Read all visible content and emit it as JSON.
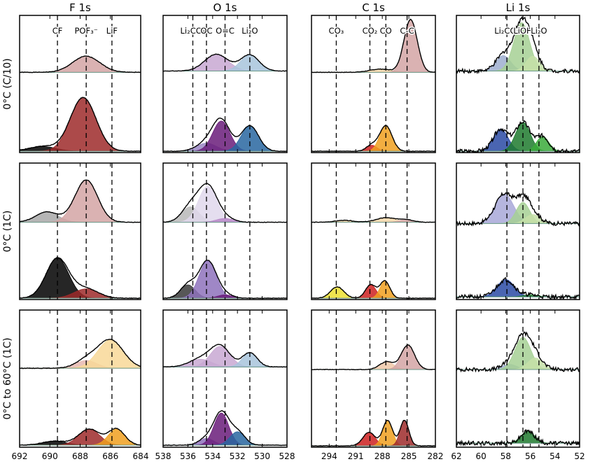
{
  "chart_data": {
    "type": "area",
    "columns": [
      {
        "title": "F 1s",
        "xlim": [
          692,
          684
        ],
        "ticks": [
          692,
          690,
          688,
          686,
          684
        ],
        "peak_positions": [
          689.5,
          687.6,
          685.9
        ],
        "peak_labels": [
          "CF",
          "POF₃⁻",
          "LiF"
        ]
      },
      {
        "title": "O 1s",
        "xlim": [
          538,
          528
        ],
        "ticks": [
          538,
          536,
          534,
          532,
          530,
          528
        ],
        "peak_positions": [
          535.6,
          534.5,
          533.0,
          531.0
        ],
        "peak_labels": [
          "Li₂CO₃",
          "OC",
          "O=C",
          "Li₂O"
        ]
      },
      {
        "title": "C 1s",
        "xlim": [
          296,
          282
        ],
        "ticks": [
          294,
          291,
          288,
          285,
          282
        ],
        "peak_positions": [
          293.2,
          289.4,
          287.6,
          285.2
        ],
        "peak_labels": [
          "CO₃",
          "CO₂",
          "CO",
          "C-C"
        ]
      },
      {
        "title": "Li 1s",
        "xlim": [
          62,
          52
        ],
        "ticks": [
          62,
          60,
          58,
          56,
          54,
          52
        ],
        "peak_positions": [
          57.9,
          56.6,
          55.3
        ],
        "peak_labels": [
          "Li₂CO₃",
          "LiOH",
          "Li₂O"
        ]
      }
    ],
    "rows": [
      "0°C (C/10)",
      "0°C (1C)",
      "0°C to 60°C (1C)"
    ],
    "panels": [
      [
        {
          "upper": {
            "baseline": 0.16,
            "components": [
              {
                "c": 687.6,
                "w": 0.9,
                "h": 0.25,
                "color": "#d4a5a5"
              }
            ]
          },
          "lower": {
            "baseline": 0.02,
            "components": [
              {
                "c": 690.5,
                "w": 0.9,
                "h": 0.07,
                "color": "#000000"
              },
              {
                "c": 687.8,
                "w": 0.85,
                "h": 0.8,
                "color": "#9e2a2a"
              }
            ]
          }
        },
        {
          "upper": {
            "baseline": 0.18,
            "components": [
              {
                "c": 533.7,
                "w": 0.95,
                "h": 0.26,
                "color": "#c8a8d2"
              },
              {
                "c": 531.0,
                "w": 0.75,
                "h": 0.25,
                "color": "#a8c4dc"
              }
            ]
          },
          "lower": {
            "baseline": 0.02,
            "components": [
              {
                "c": 534.5,
                "w": 0.8,
                "h": 0.12,
                "color": "#9a86c4"
              },
              {
                "c": 533.3,
                "w": 0.7,
                "h": 0.45,
                "color": "#6a1c7a"
              },
              {
                "c": 531.0,
                "w": 0.7,
                "h": 0.38,
                "color": "#2866a0"
              }
            ]
          }
        },
        {
          "upper": {
            "baseline": 0.16,
            "components": [
              {
                "c": 288.2,
                "w": 1.2,
                "h": 0.05,
                "color": "#f2d6a8"
              },
              {
                "c": 284.8,
                "w": 0.75,
                "h": 0.82,
                "color": "#d4a5a5"
              }
            ]
          },
          "lower": {
            "baseline": 0.02,
            "components": [
              {
                "c": 289.2,
                "w": 0.6,
                "h": 0.09,
                "color": "#cc2020"
              },
              {
                "c": 287.6,
                "w": 0.7,
                "h": 0.38,
                "color": "#f0a020"
              }
            ]
          }
        },
        {
          "upper": {
            "baseline": 0.18,
            "components": [
              {
                "c": 58.2,
                "w": 0.6,
                "h": 0.24,
                "color": "#9eaed0"
              },
              {
                "c": 56.7,
                "w": 0.65,
                "h": 0.75,
                "color": "#a6d094"
              },
              {
                "c": 55.8,
                "w": 0.55,
                "h": 0.23,
                "color": "#c6e0a8"
              }
            ]
          },
          "lower": {
            "baseline": 0.02,
            "components": [
              {
                "c": 58.4,
                "w": 0.6,
                "h": 0.33,
                "color": "#2a4aa4"
              },
              {
                "c": 56.6,
                "w": 0.6,
                "h": 0.43,
                "color": "#1e7a2e"
              },
              {
                "c": 55.0,
                "w": 0.5,
                "h": 0.22,
                "color": "#3aaa3a"
              }
            ]
          }
        }
      ],
      [
        {
          "upper": {
            "baseline": 0.12,
            "components": [
              {
                "c": 690.2,
                "w": 0.75,
                "h": 0.16,
                "color": "#a8a8a8"
              },
              {
                "c": 687.6,
                "w": 0.75,
                "h": 0.66,
                "color": "#d4a5a5"
              }
            ]
          },
          "lower": {
            "baseline": 0.02,
            "components": [
              {
                "c": 689.5,
                "w": 0.75,
                "h": 0.6,
                "color": "#000000"
              },
              {
                "c": 687.6,
                "w": 0.8,
                "h": 0.14,
                "color": "#9e2a2a"
              }
            ]
          }
        },
        {
          "upper": {
            "baseline": 0.12,
            "components": [
              {
                "c": 535.8,
                "w": 0.7,
                "h": 0.24,
                "color": "#b8b8b8"
              },
              {
                "c": 534.4,
                "w": 0.75,
                "h": 0.56,
                "color": "#e0d8ec"
              },
              {
                "c": 533.0,
                "w": 0.7,
                "h": 0.06,
                "color": "#b888c8"
              }
            ]
          },
          "lower": {
            "baseline": 0.02,
            "components": [
              {
                "c": 536.0,
                "w": 0.6,
                "h": 0.2,
                "color": "#3a3a3a"
              },
              {
                "c": 534.4,
                "w": 0.7,
                "h": 0.56,
                "color": "#8e72bc"
              },
              {
                "c": 533.0,
                "w": 0.6,
                "h": 0.05,
                "color": "#6a1c7a"
              }
            ]
          }
        },
        {
          "upper": {
            "baseline": 0.12,
            "components": [
              {
                "c": 292.3,
                "w": 1.0,
                "h": 0.03,
                "color": "#f2d6a8"
              },
              {
                "c": 287.6,
                "w": 1.1,
                "h": 0.07,
                "color": "#f2d6a8"
              },
              {
                "c": 285.3,
                "w": 0.8,
                "h": 0.04,
                "color": "#d4a5a5"
              }
            ]
          },
          "lower": {
            "baseline": 0.02,
            "components": [
              {
                "c": 293.1,
                "w": 0.75,
                "h": 0.17,
                "color": "#ece030"
              },
              {
                "c": 289.3,
                "w": 0.6,
                "h": 0.2,
                "color": "#cc2020"
              },
              {
                "c": 287.7,
                "w": 0.55,
                "h": 0.26,
                "color": "#f0a020"
              }
            ]
          }
        },
        {
          "upper": {
            "baseline": 0.1,
            "components": [
              {
                "c": 58.1,
                "w": 0.75,
                "h": 0.46,
                "color": "#a8a8d8"
              },
              {
                "c": 56.6,
                "w": 0.55,
                "h": 0.33,
                "color": "#a6d094"
              },
              {
                "c": 55.8,
                "w": 0.6,
                "h": 0.14,
                "color": "#c6e0a8"
              }
            ]
          },
          "lower": {
            "baseline": 0.04,
            "components": [
              {
                "c": 58.0,
                "w": 0.7,
                "h": 0.26,
                "color": "#2a4aa4"
              },
              {
                "c": 56.0,
                "w": 0.6,
                "h": 0.03,
                "color": "#1e7a2e"
              }
            ]
          }
        }
      ],
      [
        {
          "upper": {
            "baseline": 0.14,
            "components": [
              {
                "c": 687.6,
                "w": 0.7,
                "h": 0.12,
                "color": "#e8b8b0"
              },
              {
                "c": 686.0,
                "w": 0.85,
                "h": 0.44,
                "color": "#f8d898"
              }
            ]
          },
          "lower": {
            "baseline": 0.03,
            "components": [
              {
                "c": 689.7,
                "w": 0.8,
                "h": 0.06,
                "color": "#000000"
              },
              {
                "c": 687.4,
                "w": 0.7,
                "h": 0.24,
                "color": "#9e2a2a"
              },
              {
                "c": 685.6,
                "w": 0.55,
                "h": 0.24,
                "color": "#f0a020"
              }
            ]
          }
        },
        {
          "upper": {
            "baseline": 0.16,
            "components": [
              {
                "c": 535.0,
                "w": 0.9,
                "h": 0.12,
                "color": "#c8a8d2"
              },
              {
                "c": 533.4,
                "w": 0.8,
                "h": 0.32,
                "color": "#c8a8d2"
              },
              {
                "c": 531.0,
                "w": 0.6,
                "h": 0.22,
                "color": "#a8c4dc"
              }
            ]
          },
          "lower": {
            "baseline": 0.03,
            "components": [
              {
                "c": 534.5,
                "w": 0.6,
                "h": 0.1,
                "color": "#8e72bc"
              },
              {
                "c": 533.3,
                "w": 0.6,
                "h": 0.48,
                "color": "#6a1c7a"
              },
              {
                "c": 532.0,
                "w": 0.6,
                "h": 0.2,
                "color": "#2866a0"
              }
            ]
          }
        },
        {
          "upper": {
            "baseline": 0.12,
            "components": [
              {
                "c": 287.5,
                "w": 0.8,
                "h": 0.12,
                "color": "#f0c8a8"
              },
              {
                "c": 285.1,
                "w": 0.75,
                "h": 0.38,
                "color": "#d4a5a5"
              }
            ]
          },
          "lower": {
            "baseline": 0.02,
            "components": [
              {
                "c": 289.5,
                "w": 0.7,
                "h": 0.2,
                "color": "#cc2020"
              },
              {
                "c": 287.4,
                "w": 0.55,
                "h": 0.38,
                "color": "#f0a020"
              },
              {
                "c": 285.5,
                "w": 0.5,
                "h": 0.38,
                "color": "#9e2a2a"
              }
            ]
          }
        },
        {
          "upper": {
            "baseline": 0.12,
            "components": [
              {
                "c": 57.7,
                "w": 0.6,
                "h": 0.08,
                "color": "#9eaed0"
              },
              {
                "c": 56.6,
                "w": 0.65,
                "h": 0.5,
                "color": "#a6d094"
              },
              {
                "c": 55.6,
                "w": 0.6,
                "h": 0.18,
                "color": "#c6e0a8"
              }
            ]
          },
          "lower": {
            "baseline": 0.06,
            "components": [
              {
                "c": 56.2,
                "w": 0.55,
                "h": 0.18,
                "color": "#1e7a2e"
              }
            ]
          }
        }
      ]
    ]
  }
}
